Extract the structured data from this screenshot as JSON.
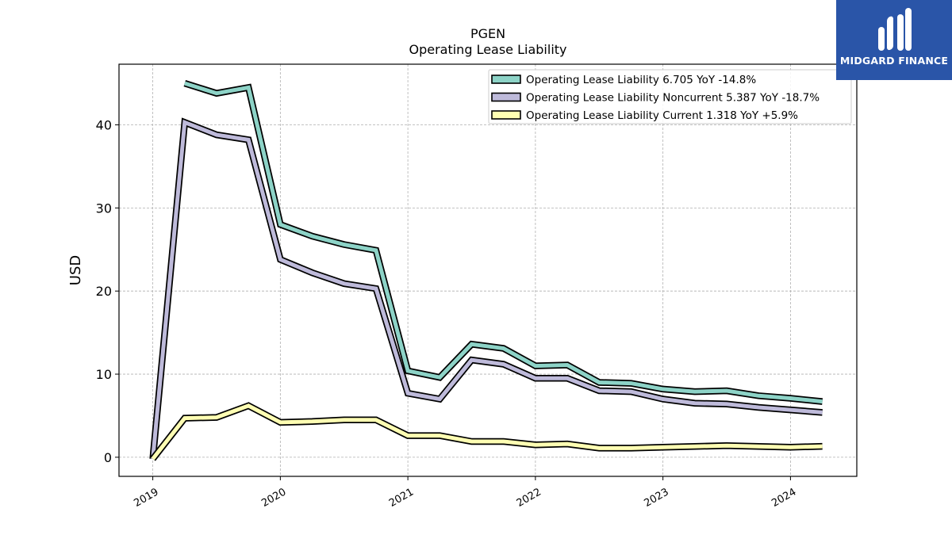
{
  "chart_data": {
    "type": "line",
    "title": "PGEN",
    "subtitle": "Operating Lease Liability",
    "ylabel": "USD",
    "xlabel": "",
    "ylim": [
      -2.3,
      47.3
    ],
    "xlim": [
      2018.735,
      2024.52
    ],
    "yticks": [
      0,
      10,
      20,
      30,
      40
    ],
    "xticks": [
      "2019",
      "2020",
      "2021",
      "2022",
      "2023",
      "2024"
    ],
    "grid": true,
    "legend_position": "top-right",
    "series": [
      {
        "name": "Operating Lease Liability  6.705 YoY -14.8%",
        "color": "#8dd3c7",
        "x": [
          2019.25,
          2019.5,
          2019.75,
          2020.0,
          2020.25,
          2020.5,
          2020.75,
          2021.0,
          2021.25,
          2021.5,
          2021.75,
          2022.0,
          2022.25,
          2022.5,
          2022.75,
          2023.0,
          2023.25,
          2023.5,
          2023.75,
          2024.0,
          2024.25
        ],
        "values": [
          45.0,
          43.8,
          44.5,
          28.0,
          26.6,
          25.6,
          24.9,
          10.4,
          9.6,
          13.6,
          13.1,
          11.0,
          11.1,
          9.0,
          8.9,
          8.2,
          7.9,
          8.0,
          7.4,
          7.1,
          6.705
        ]
      },
      {
        "name": "Operating Lease Liability Noncurrent  5.387 YoY -18.7%",
        "color": "#bebada",
        "x": [
          2019.0,
          2019.25,
          2019.5,
          2019.75,
          2020.0,
          2020.25,
          2020.5,
          2020.75,
          2021.0,
          2021.25,
          2021.5,
          2021.75,
          2022.0,
          2022.25,
          2022.5,
          2022.75,
          2023.0,
          2023.25,
          2023.5,
          2023.75,
          2024.0,
          2024.25
        ],
        "values": [
          -0.2,
          40.3,
          38.8,
          38.2,
          23.8,
          22.2,
          20.9,
          20.3,
          7.7,
          7.0,
          11.7,
          11.2,
          9.5,
          9.5,
          8.0,
          7.9,
          7.0,
          6.5,
          6.4,
          6.0,
          5.7,
          5.387
        ]
      },
      {
        "name": "Operating Lease Liability Current  1.318 YoY +5.9%",
        "color": "#ffffb3",
        "x": [
          2019.0,
          2019.25,
          2019.5,
          2019.75,
          2020.0,
          2020.25,
          2020.5,
          2020.75,
          2021.0,
          2021.25,
          2021.5,
          2021.75,
          2022.0,
          2022.25,
          2022.5,
          2022.75,
          2023.0,
          2023.25,
          2023.5,
          2023.75,
          2024.0,
          2024.25
        ],
        "values": [
          -0.2,
          4.7,
          4.8,
          6.2,
          4.2,
          4.3,
          4.5,
          4.5,
          2.6,
          2.6,
          1.9,
          1.9,
          1.5,
          1.6,
          1.1,
          1.1,
          1.2,
          1.3,
          1.4,
          1.3,
          1.2,
          1.318
        ]
      }
    ]
  },
  "logo": {
    "text": "MIDGARD FINANCE",
    "color": "#2a55a8"
  }
}
